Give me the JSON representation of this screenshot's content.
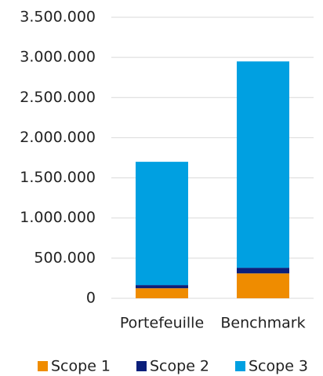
{
  "chart_data": {
    "type": "stacked_bar",
    "categories": [
      "Portefeuille",
      "Benchmark"
    ],
    "series": [
      {
        "name": "Scope 1",
        "color": "#ef8c00",
        "values": [
          125000,
          310000
        ]
      },
      {
        "name": "Scope 2",
        "color": "#0b1f7a",
        "values": [
          40000,
          70000
        ]
      },
      {
        "name": "Scope 3",
        "color": "#00a0e1",
        "values": [
          1535000,
          2570000
        ]
      }
    ],
    "ylim": [
      0,
      3500000
    ],
    "yticks": [
      0,
      {
        "value": 500000,
        "label": "500.000"
      },
      {
        "value": 1000000,
        "label": "1.000.000"
      },
      {
        "value": 1500000,
        "label": "1.500.000"
      },
      {
        "value": 2000000,
        "label": "2.000.000"
      },
      {
        "value": 2500000,
        "label": "2.500.000"
      },
      {
        "value": 3000000,
        "label": "3.000.000"
      },
      {
        "value": 3500000,
        "label": "3.500.000"
      }
    ],
    "grid": true,
    "legend": "bottom"
  }
}
